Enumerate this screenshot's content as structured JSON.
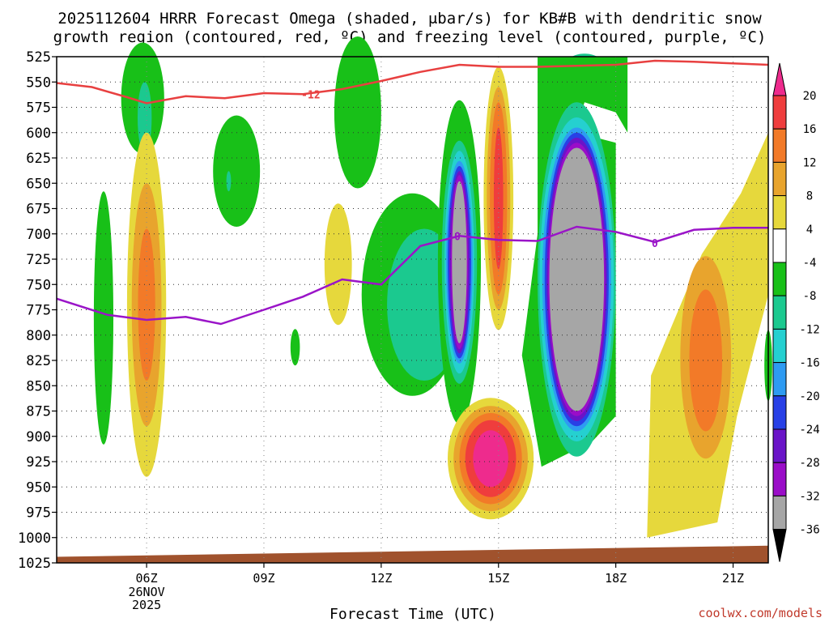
{
  "chart_data": {
    "type": "heatmap",
    "title_line1": "2025112604 HRRR Forecast Omega (shaded, μbar/s) for KB#B with dendritic snow",
    "title_line2": "growth region (contoured, red, ºC) and freezing level (contoured, purple, ºC)",
    "xlabel": "Forecast Time (UTC)",
    "credit": "coolwx.com/models",
    "x_range_hours": [
      3.7,
      21.9
    ],
    "y_range_mb": [
      525,
      1025
    ],
    "y_ticks": [
      "525",
      "550",
      "575",
      "600",
      "625",
      "650",
      "675",
      "700",
      "725",
      "750",
      "775",
      "800",
      "825",
      "850",
      "875",
      "900",
      "925",
      "950",
      "975",
      "1000",
      "1025"
    ],
    "x_ticks": [
      {
        "label": "06Z",
        "hour": 6,
        "sub1": "26NOV",
        "sub2": "2025"
      },
      {
        "label": "09Z",
        "hour": 9
      },
      {
        "label": "12Z",
        "hour": 12
      },
      {
        "label": "15Z",
        "hour": 15
      },
      {
        "label": "18Z",
        "hour": 18
      },
      {
        "label": "21Z",
        "hour": 21
      }
    ],
    "colorbar": {
      "labels": [
        "20",
        "16",
        "12",
        "8",
        "4",
        "-4",
        "-8",
        "-12",
        "-16",
        "-20",
        "-24",
        "-28",
        "-32",
        "-36"
      ],
      "colors": [
        "#ef3d3d",
        "#f27a28",
        "#e8a42d",
        "#e6d83c",
        "#ffffff",
        "#18c018",
        "#1bc98f",
        "#25d0d0",
        "#2e9bf2",
        "#2840e6",
        "#6a14c8",
        "#9a0dc8",
        "#a6a6a6"
      ],
      "top_color": "#ee2b8d",
      "bottom_color": "#000000"
    },
    "series": [
      {
        "name": "dendritic growth -12 ºC",
        "label": "-12",
        "color": "#e84040",
        "x": [
          3.7,
          4.6,
          5.5,
          6.0,
          7.0,
          8.0,
          9.0,
          10.0,
          11.0,
          12.0,
          13.0,
          14.0,
          15.0,
          16.0,
          17.0,
          18.0,
          19.0,
          20.0,
          21.9
        ],
        "y": [
          551,
          555,
          565,
          571,
          564,
          566,
          561,
          562,
          557,
          549,
          540,
          533,
          535,
          535,
          534,
          533,
          529,
          530,
          533
        ]
      },
      {
        "name": "freezing level 0 ºC",
        "label": "0",
        "color": "#9a14c8",
        "x": [
          3.7,
          5.0,
          6.0,
          7.0,
          7.9,
          9.0,
          10.0,
          11.0,
          12.0,
          13.0,
          14.0,
          15.0,
          16.0,
          17.0,
          18.0,
          19.0,
          20.0,
          21.0,
          21.9
        ],
        "y": [
          764,
          780,
          785,
          782,
          789,
          775,
          762,
          745,
          750,
          712,
          702,
          706,
          707,
          693,
          698,
          708,
          696,
          694,
          694
        ]
      }
    ],
    "omega_regions": [
      {
        "value": -8,
        "center": [
          5.9,
          566
        ],
        "rx": 0.55,
        "ry": 55
      },
      {
        "value": -8,
        "center": [
          8.3,
          638
        ],
        "rx": 0.6,
        "ry": 55
      },
      {
        "value": -8,
        "center": [
          4.9,
          783
        ],
        "rx": 0.25,
        "ry": 125
      },
      {
        "value": -8,
        "center": [
          11.4,
          580
        ],
        "rx": 0.6,
        "ry": 75
      },
      {
        "value": -8,
        "center": [
          12.8,
          760
        ],
        "rx": 1.3,
        "ry": 100
      },
      {
        "value": -36,
        "center": [
          14.0,
          732
        ],
        "rx": 0.55,
        "ry": 85
      },
      {
        "value": -36,
        "center": [
          17.0,
          745
        ],
        "rx": 1.0,
        "ry": 140
      },
      {
        "value": 20,
        "center": [
          14.8,
          925
        ],
        "rx": 0.9,
        "ry": 35
      },
      {
        "value": 8,
        "center": [
          6.0,
          765
        ],
        "rx": 0.5,
        "ry": 165
      },
      {
        "value": 12,
        "center": [
          15.0,
          665
        ],
        "rx": 0.35,
        "ry": 115
      },
      {
        "value": 12,
        "center": [
          20.3,
          822
        ],
        "rx": 0.7,
        "ry": 115
      }
    ]
  }
}
